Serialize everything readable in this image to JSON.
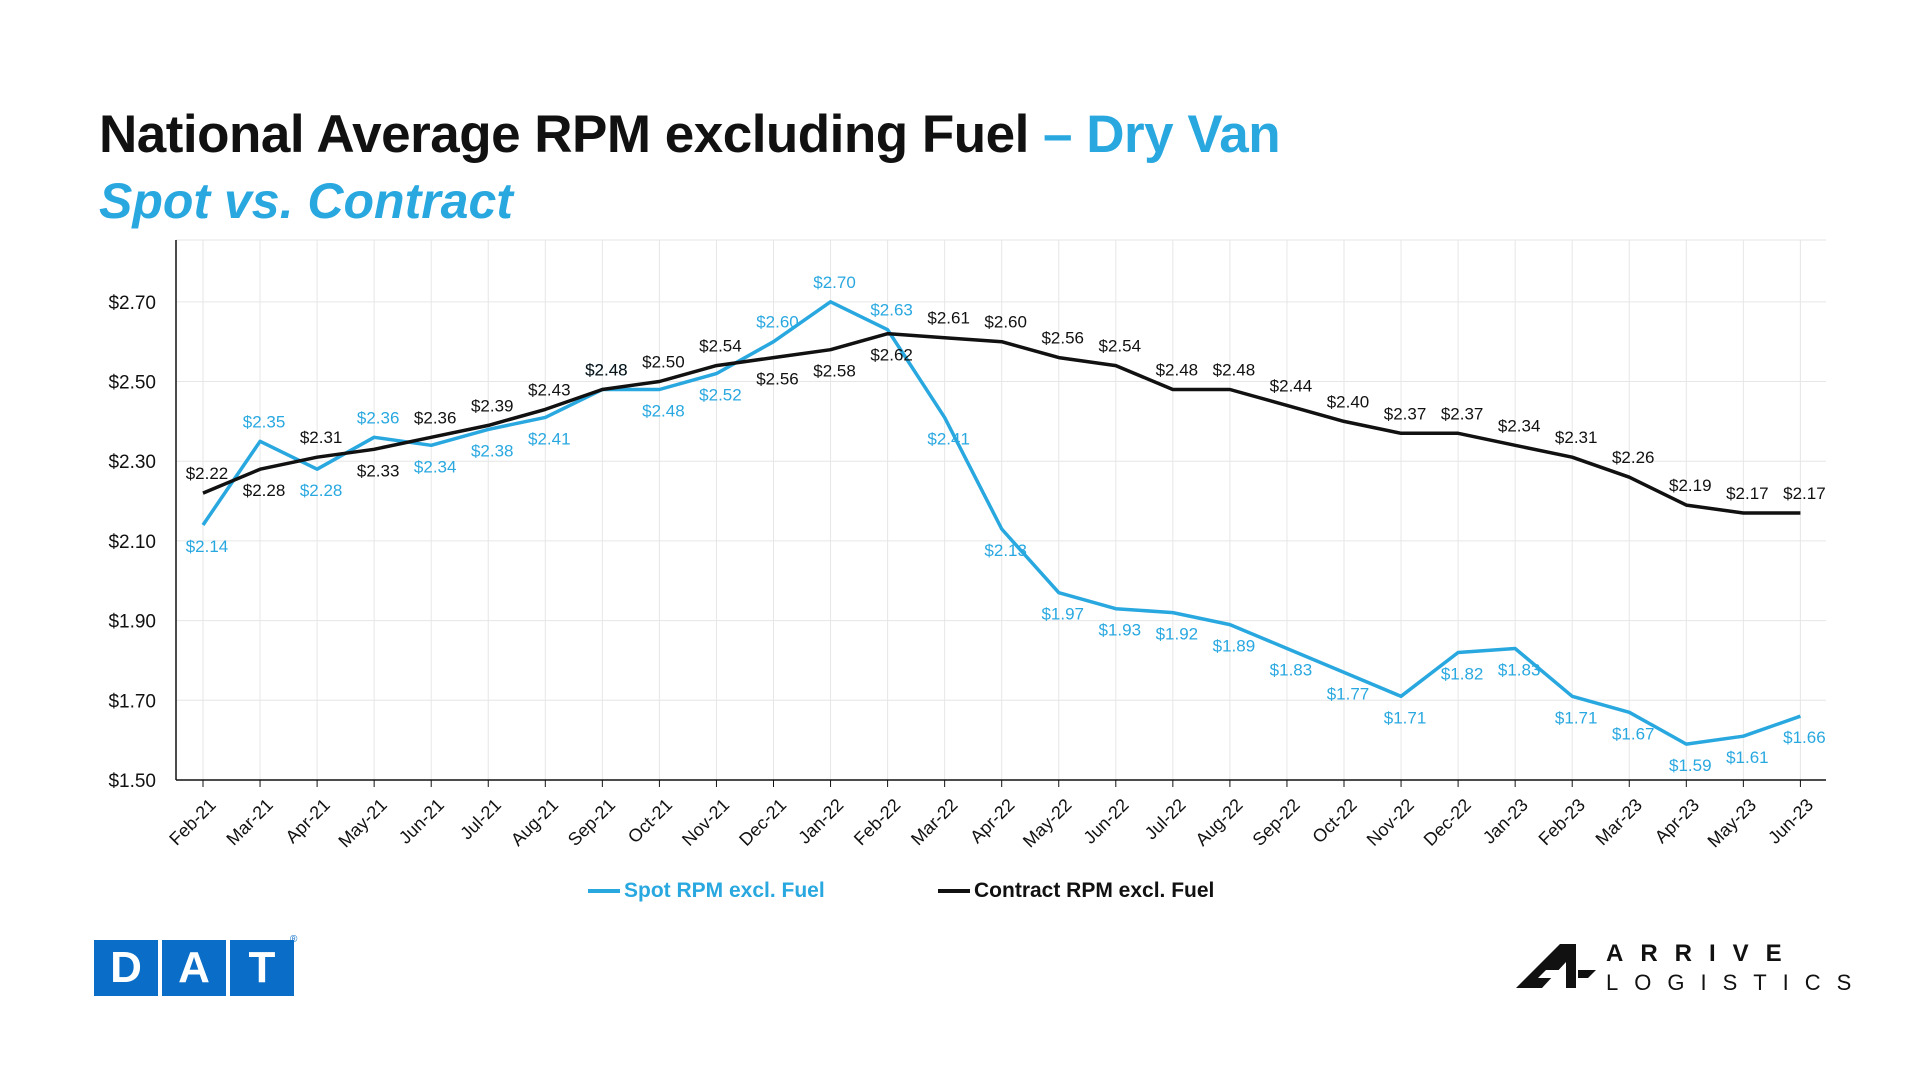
{
  "header": {
    "title": "National Average RPM excluding Fuel",
    "title_accent": " – Dry Van",
    "subtitle": "Spot vs. Contract"
  },
  "colors": {
    "spot": "#29a8e0",
    "contract": "#111111",
    "grid": "#e6e6e6",
    "dat_blue": "#0a6ec8"
  },
  "chart_data": {
    "type": "line",
    "x": [
      "Feb-21",
      "Mar-21",
      "Apr-21",
      "May-21",
      "Jun-21",
      "Jul-21",
      "Aug-21",
      "Sep-21",
      "Oct-21",
      "Nov-21",
      "Dec-21",
      "Jan-22",
      "Feb-22",
      "Mar-22",
      "Apr-22",
      "May-22",
      "Jun-22",
      "Jul-22",
      "Aug-22",
      "Sep-22",
      "Oct-22",
      "Nov-22",
      "Dec-22",
      "Jan-23",
      "Feb-23",
      "Mar-23",
      "Apr-23",
      "May-23",
      "Jun-23"
    ],
    "series": [
      {
        "name": "Spot RPM excl. Fuel",
        "values": [
          2.14,
          2.35,
          2.28,
          2.36,
          2.34,
          2.38,
          2.41,
          2.48,
          2.48,
          2.52,
          2.6,
          2.7,
          2.63,
          2.41,
          2.13,
          1.97,
          1.93,
          1.92,
          1.89,
          1.83,
          1.77,
          1.71,
          1.82,
          1.83,
          1.71,
          1.67,
          1.59,
          1.61,
          1.66
        ]
      },
      {
        "name": "Contract RPM excl. Fuel",
        "values": [
          2.22,
          2.28,
          2.31,
          2.33,
          2.36,
          2.39,
          2.43,
          2.48,
          2.5,
          2.54,
          2.56,
          2.58,
          2.62,
          2.61,
          2.6,
          2.56,
          2.54,
          2.48,
          2.48,
          2.44,
          2.4,
          2.37,
          2.37,
          2.34,
          2.31,
          2.26,
          2.19,
          2.17,
          2.17
        ]
      }
    ],
    "yticks": [
      "$1.50",
      "$1.70",
      "$1.90",
      "$2.10",
      "$2.30",
      "$2.50",
      "$2.70"
    ],
    "ylim": [
      1.5,
      2.8
    ],
    "ytick_values": [
      1.5,
      1.7,
      1.9,
      2.1,
      2.3,
      2.5,
      2.7
    ],
    "value_prefix": "$",
    "grid": true,
    "legend_position": "bottom"
  },
  "logos": {
    "dat": [
      "D",
      "A",
      "T"
    ],
    "dat_mark": "®",
    "arrive_line1": "ARRIVE",
    "arrive_line2": "LOGISTICS"
  }
}
